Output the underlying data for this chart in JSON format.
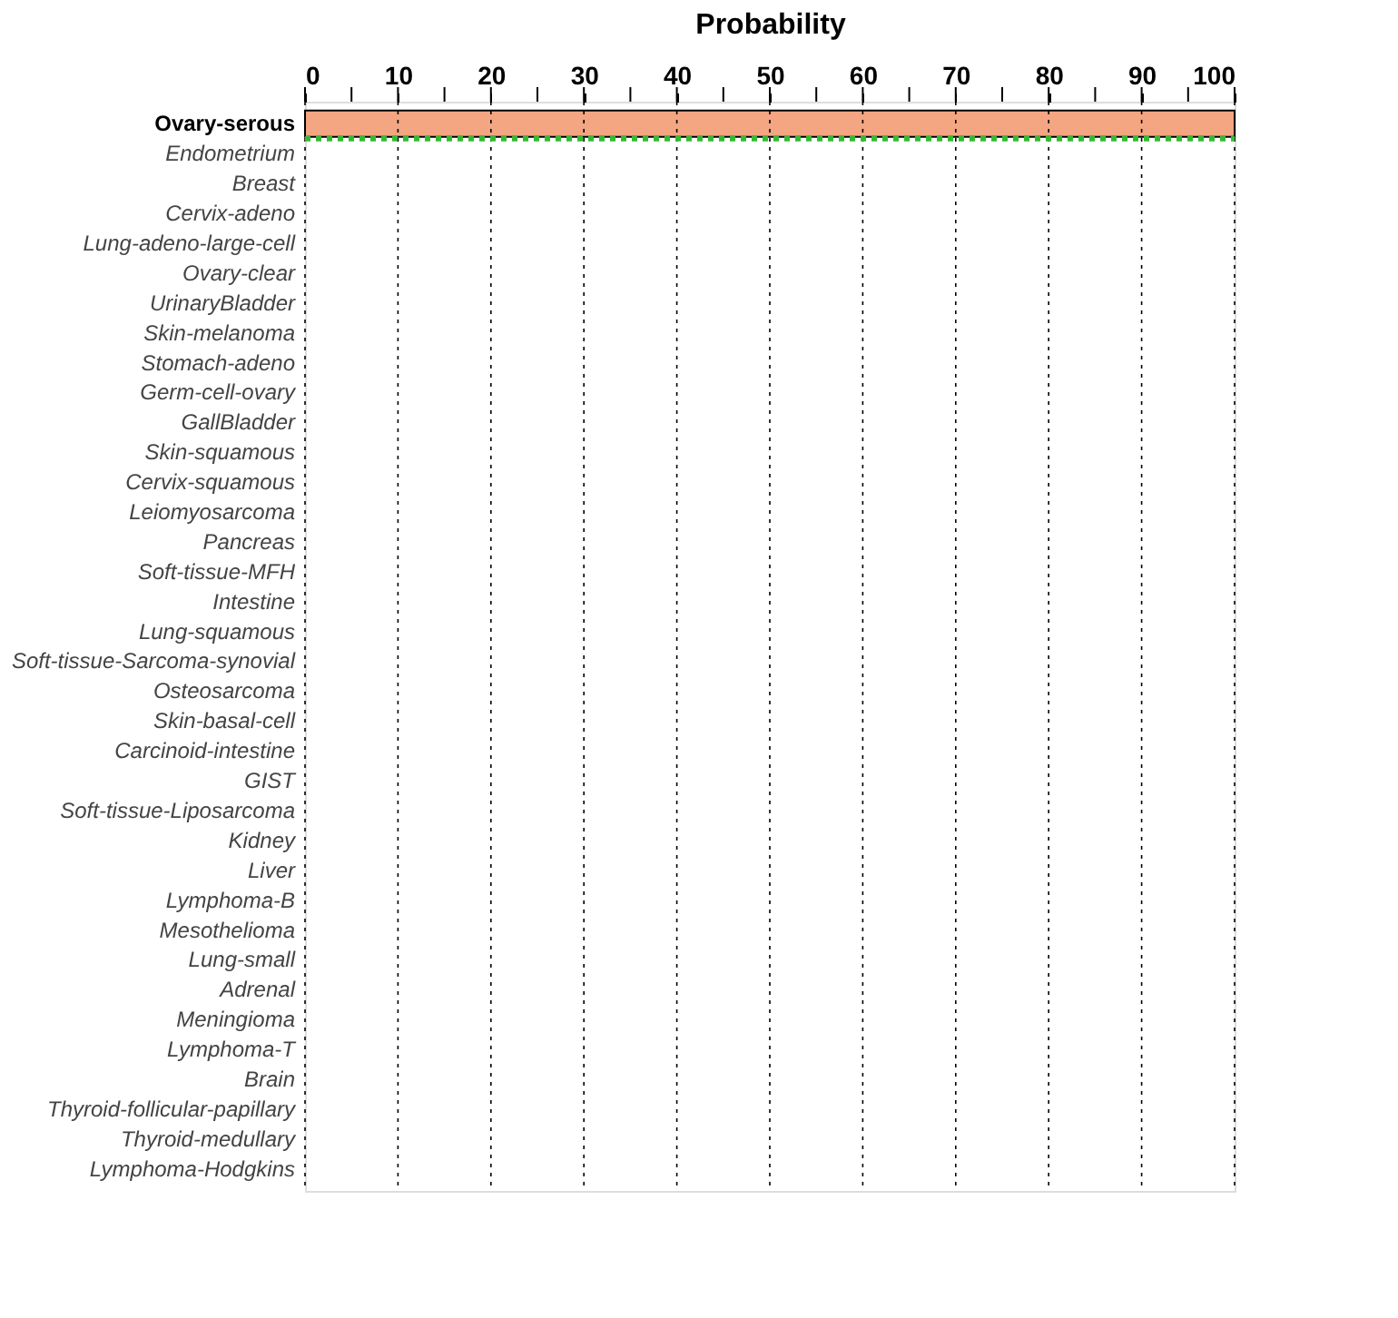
{
  "chart_data": {
    "type": "bar",
    "orientation": "horizontal",
    "xlabel": "Probability",
    "categories": [
      "Ovary-serous",
      "Endometrium",
      "Breast",
      "Cervix-adeno",
      "Lung-adeno-large-cell",
      "Ovary-clear",
      "UrinaryBladder",
      "Skin-melanoma",
      "Stomach-adeno",
      "Germ-cell-ovary",
      "GallBladder",
      "Skin-squamous",
      "Cervix-squamous",
      "Leiomyosarcoma",
      "Pancreas",
      "Soft-tissue-MFH",
      "Intestine",
      "Lung-squamous",
      "Soft-tissue-Sarcoma-synovial",
      "Osteosarcoma",
      "Skin-basal-cell",
      "Carcinoid-intestine",
      "GIST",
      "Soft-tissue-Liposarcoma",
      "Kidney",
      "Liver",
      "Lymphoma-B",
      "Mesothelioma",
      "Lung-small",
      "Adrenal",
      "Meningioma",
      "Lymphoma-T",
      "Brain",
      "Thyroid-follicular-papillary",
      "Thyroid-medullary",
      "Lymphoma-Hodgkins"
    ],
    "values": [
      100,
      0,
      0,
      0,
      0,
      0,
      0,
      0,
      0,
      0,
      0,
      0,
      0,
      0,
      0,
      0,
      0,
      0,
      0,
      0,
      0,
      0,
      0,
      0,
      0,
      0,
      0,
      0,
      0,
      0,
      0,
      0,
      0,
      0,
      0,
      0
    ],
    "color": "#f4a582",
    "xlim": [
      0,
      100
    ],
    "xticks": [
      0,
      {
        "value": 5,
        "label": null
      },
      10,
      {
        "value": 15,
        "label": null
      },
      20,
      {
        "value": 25,
        "label": null
      },
      30,
      {
        "value": 35,
        "label": null
      },
      40,
      {
        "value": 45,
        "label": null
      },
      50,
      {
        "value": 55,
        "label": null
      },
      60,
      {
        "value": 65,
        "label": null
      },
      70,
      {
        "value": 75,
        "label": null
      },
      80,
      {
        "value": 85,
        "label": null
      },
      90,
      {
        "value": 95,
        "label": null
      },
      100
    ],
    "grid": "x",
    "ref_lines": [
      {
        "axis": "y",
        "value": "Endometrium",
        "color": "#33bb33",
        "line_style": "dotted"
      }
    ]
  }
}
